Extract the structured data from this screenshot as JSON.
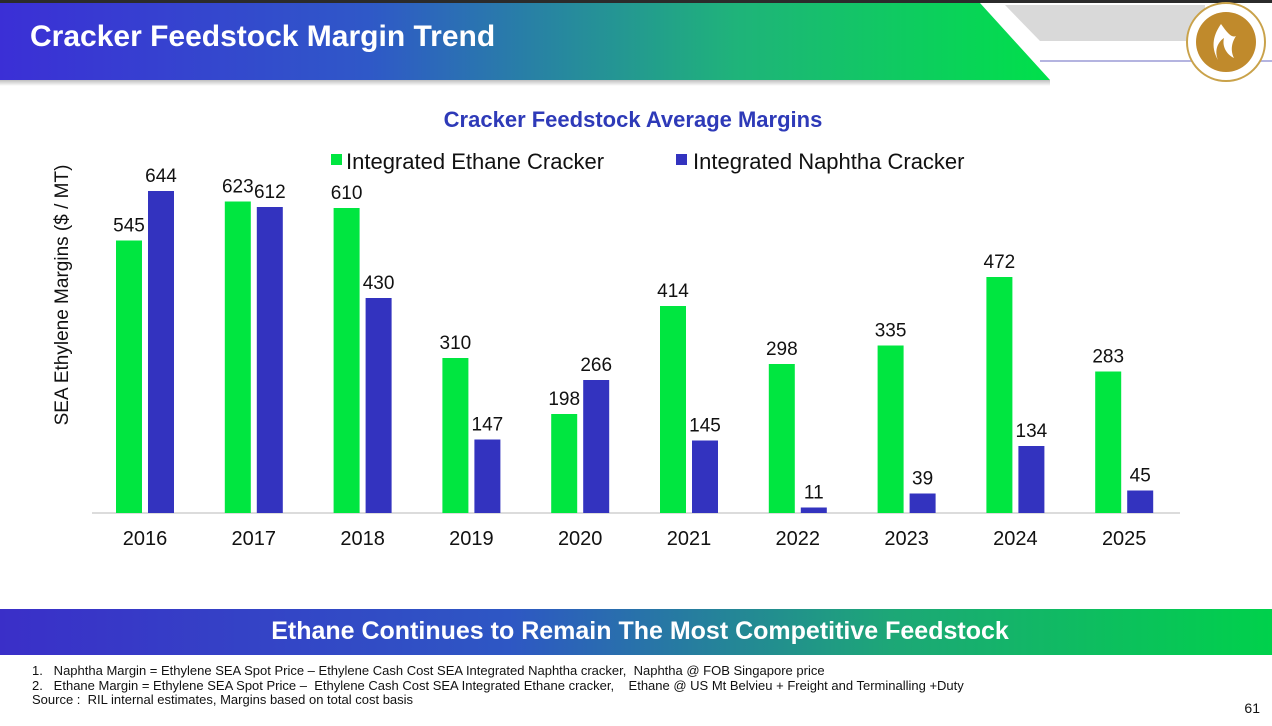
{
  "header": {
    "title": "Cracker Feedstock Margin Trend",
    "logo_icon": "reliance-flame-logo-icon"
  },
  "colors": {
    "ethane": "#00e640",
    "naphtha": "#3333bf",
    "chart_title": "#2e3ab8",
    "axis": "#d0d0d0"
  },
  "chart_data": {
    "type": "bar",
    "title": "Cracker Feedstock Average Margins",
    "ylabel": "SEA Ethylene Margins ($ / MT)",
    "xlabel": "",
    "categories": [
      "2016",
      "2017",
      "2018",
      "2019",
      "2020",
      "2021",
      "2022",
      "2023",
      "2024",
      "2025"
    ],
    "series": [
      {
        "name": "Integrated Ethane Cracker",
        "values": [
          545,
          623,
          610,
          310,
          198,
          414,
          298,
          335,
          472,
          283
        ]
      },
      {
        "name": "Integrated Naphtha Cracker",
        "values": [
          644,
          612,
          430,
          147,
          266,
          145,
          11,
          39,
          134,
          45
        ]
      }
    ],
    "ylim": [
      0,
      700
    ],
    "grid": false,
    "legend_position": "top-center"
  },
  "banner": {
    "text": "Ethane Continues to Remain The Most Competitive Feedstock"
  },
  "notes": {
    "line1": "1.   Naphtha Margin = Ethylene SEA Spot Price – Ethylene Cash Cost SEA Integrated Naphtha cracker,  Naphtha @ FOB Singapore price",
    "line2": "2.   Ethane Margin = Ethylene SEA Spot Price –  Ethylene Cash Cost SEA Integrated Ethane cracker,    Ethane @ US Mt Belvieu + Freight and Terminalling +Duty",
    "line3": "Source :  RIL internal estimates, Margins based on total cost basis"
  },
  "page_number": "61"
}
